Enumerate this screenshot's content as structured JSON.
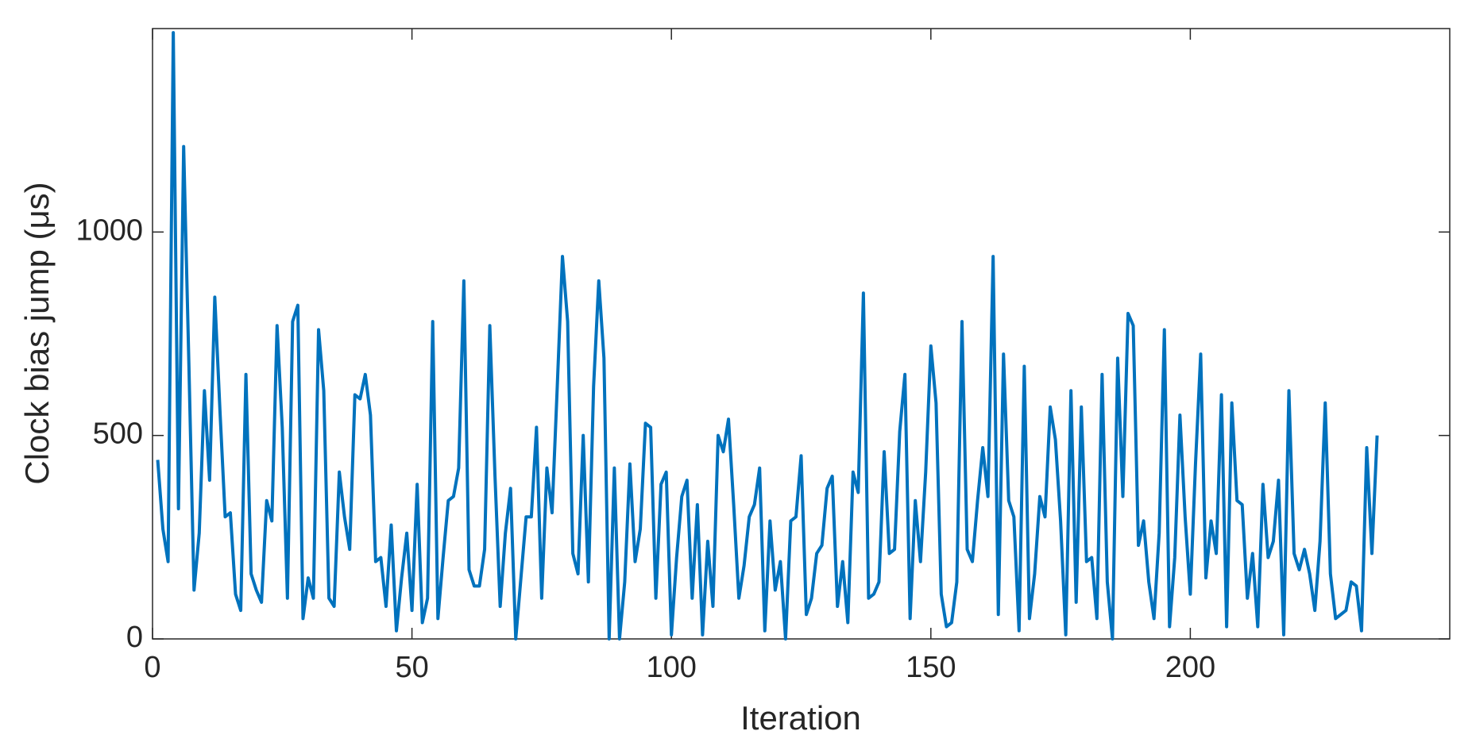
{
  "chart_data": {
    "type": "line",
    "xlabel": "Iteration",
    "ylabel": "Clock bias jump (μs)",
    "color": "#0072BD",
    "grid": false,
    "xlim": [
      0,
      250
    ],
    "xticks": [
      0,
      50,
      100,
      150,
      200
    ],
    "ylim": [
      0,
      1500
    ],
    "yticks": [
      0,
      500,
      1000
    ],
    "x": [
      1,
      2,
      3,
      4,
      5,
      6,
      7,
      8,
      9,
      10,
      11,
      12,
      13,
      14,
      15,
      16,
      17,
      18,
      19,
      20,
      21,
      22,
      23,
      24,
      25,
      26,
      27,
      28,
      29,
      30,
      31,
      32,
      33,
      34,
      35,
      36,
      37,
      38,
      39,
      40,
      41,
      42,
      43,
      44,
      45,
      46,
      47,
      48,
      49,
      50,
      51,
      52,
      53,
      54,
      55,
      56,
      57,
      58,
      59,
      60,
      61,
      62,
      63,
      64,
      65,
      66,
      67,
      68,
      69,
      70,
      71,
      72,
      73,
      74,
      75,
      76,
      77,
      78,
      79,
      80,
      81,
      82,
      83,
      84,
      85,
      86,
      87,
      88,
      89,
      90,
      91,
      92,
      93,
      94,
      95,
      96,
      97,
      98,
      99,
      100,
      101,
      102,
      103,
      104,
      105,
      106,
      107,
      108,
      109,
      110,
      111,
      112,
      113,
      114,
      115,
      116,
      117,
      118,
      119,
      120,
      121,
      122,
      123,
      124,
      125,
      126,
      127,
      128,
      129,
      130,
      131,
      132,
      133,
      134,
      135,
      136,
      137,
      138,
      139,
      140,
      141,
      142,
      143,
      144,
      145,
      146,
      147,
      148,
      149,
      150,
      151,
      152,
      153,
      154,
      155,
      156,
      157,
      158,
      159,
      160,
      161,
      162,
      163,
      164,
      165,
      166,
      167,
      168,
      169,
      170,
      171,
      172,
      173,
      174,
      175,
      176,
      177,
      178,
      179,
      180,
      181,
      182,
      183,
      184,
      185,
      186,
      187,
      188,
      189,
      190,
      191,
      192,
      193,
      194,
      195,
      196,
      197,
      198,
      199,
      200,
      201,
      202,
      203,
      204,
      205,
      206,
      207,
      208,
      209,
      210,
      211,
      212,
      213,
      214,
      215,
      216,
      217,
      218,
      219,
      220,
      221,
      222,
      223,
      224,
      225,
      226,
      227,
      228,
      229,
      230,
      231,
      232,
      233,
      234,
      235,
      236
    ],
    "values": [
      440,
      270,
      190,
      1490,
      320,
      1210,
      680,
      120,
      260,
      610,
      390,
      840,
      560,
      300,
      310,
      110,
      70,
      650,
      160,
      120,
      90,
      340,
      290,
      770,
      520,
      100,
      780,
      820,
      50,
      150,
      100,
      760,
      610,
      100,
      80,
      410,
      300,
      220,
      600,
      590,
      650,
      550,
      190,
      200,
      80,
      280,
      20,
      150,
      260,
      70,
      380,
      40,
      100,
      780,
      50,
      200,
      340,
      350,
      420,
      880,
      170,
      130,
      130,
      220,
      770,
      400,
      80,
      260,
      370,
      0,
      150,
      300,
      300,
      520,
      100,
      420,
      310,
      620,
      940,
      780,
      210,
      160,
      500,
      140,
      620,
      880,
      690,
      0,
      420,
      0,
      140,
      430,
      190,
      270,
      530,
      520,
      100,
      380,
      410,
      10,
      200,
      350,
      390,
      100,
      330,
      10,
      240,
      80,
      500,
      460,
      540,
      330,
      100,
      180,
      300,
      330,
      420,
      20,
      290,
      120,
      190,
      0,
      290,
      300,
      450,
      60,
      100,
      210,
      230,
      370,
      400,
      80,
      190,
      40,
      410,
      360,
      850,
      100,
      110,
      140,
      460,
      210,
      220,
      510,
      650,
      50,
      340,
      190,
      410,
      720,
      580,
      110,
      30,
      40,
      140,
      780,
      220,
      190,
      340,
      470,
      350,
      940,
      60,
      700,
      340,
      300,
      20,
      670,
      50,
      160,
      350,
      300,
      570,
      490,
      290,
      10,
      610,
      90,
      570,
      190,
      200,
      50,
      650,
      140,
      0,
      690,
      350,
      800,
      770,
      230,
      290,
      140,
      50,
      260,
      760,
      30,
      200,
      550,
      300,
      110,
      430,
      700,
      150,
      290,
      210,
      600,
      30,
      580,
      340,
      330,
      100,
      210,
      30,
      380,
      200,
      240,
      390,
      10,
      610,
      210,
      170,
      220,
      160,
      70,
      240,
      580,
      160,
      50,
      60,
      70,
      140,
      130,
      20,
      470,
      210,
      500
    ]
  }
}
